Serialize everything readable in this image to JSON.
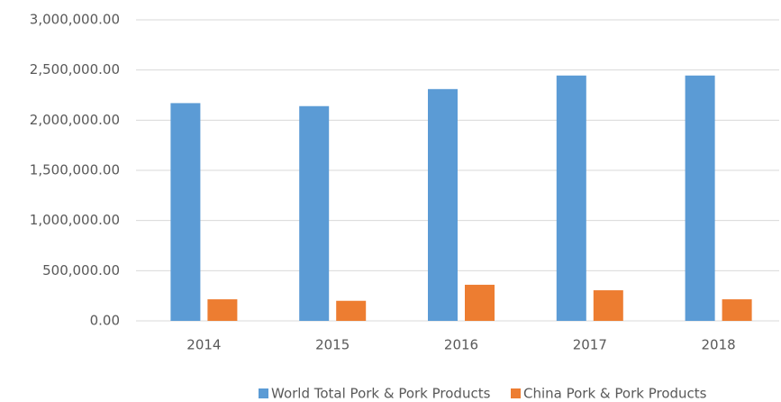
{
  "chart_data": {
    "type": "bar",
    "categories": [
      "2014",
      "2015",
      "2016",
      "2017",
      "2018"
    ],
    "series": [
      {
        "name": "World Total Pork & Pork Products",
        "color": "#5b9bd5",
        "values": [
          2170000,
          2140000,
          2310000,
          2445000,
          2445000
        ]
      },
      {
        "name": "China Pork & Pork Products",
        "color": "#ed7d31",
        "values": [
          215000,
          200000,
          360000,
          305000,
          215000
        ]
      }
    ],
    "ylim": [
      0,
      3000000
    ],
    "yticks": [
      {
        "value": 0,
        "label": "0.00"
      },
      {
        "value": 500000,
        "label": "500,000.00"
      },
      {
        "value": 1000000,
        "label": "1,000,000.00"
      },
      {
        "value": 1500000,
        "label": "1,500,000.00"
      },
      {
        "value": 2000000,
        "label": "2,000,000.00"
      },
      {
        "value": 2500000,
        "label": "2,500,000.00"
      },
      {
        "value": 3000000,
        "label": "3,000,000.00"
      }
    ],
    "grid": true,
    "legend": "bottom"
  }
}
